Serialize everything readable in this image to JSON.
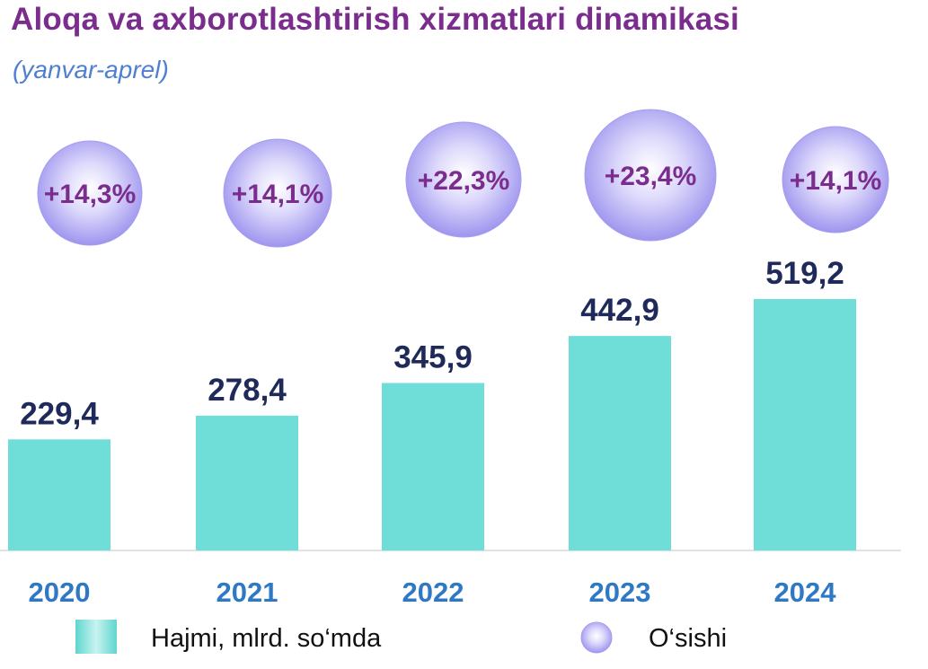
{
  "chart_data": {
    "type": "bar",
    "title": "Aloqa va axborotlashtirish xizmatlari dinamikasi",
    "subtitle": "(yanvar-aprel)",
    "categories": [
      "2020",
      "2021",
      "2022",
      "2023",
      "2024"
    ],
    "series": [
      {
        "name": "Hajmi, mlrd. so‘mda",
        "values": [
          229.4,
          278.4,
          345.9,
          442.9,
          519.2
        ],
        "labels": [
          "229,4",
          "278,4",
          "345,9",
          "442,9",
          "519,2"
        ],
        "color": "#6fded8"
      },
      {
        "name": "O‘sishi",
        "values": [
          14.3,
          14.1,
          22.3,
          23.4,
          14.1
        ],
        "labels": [
          "+14,3%",
          "+14,1%",
          "+22,3%",
          "+23,4%",
          "+14,1%"
        ],
        "color": "#b5aff2"
      }
    ],
    "ylim": [
      0,
      560
    ],
    "grid": false,
    "legend_placement": "bottom"
  }
}
